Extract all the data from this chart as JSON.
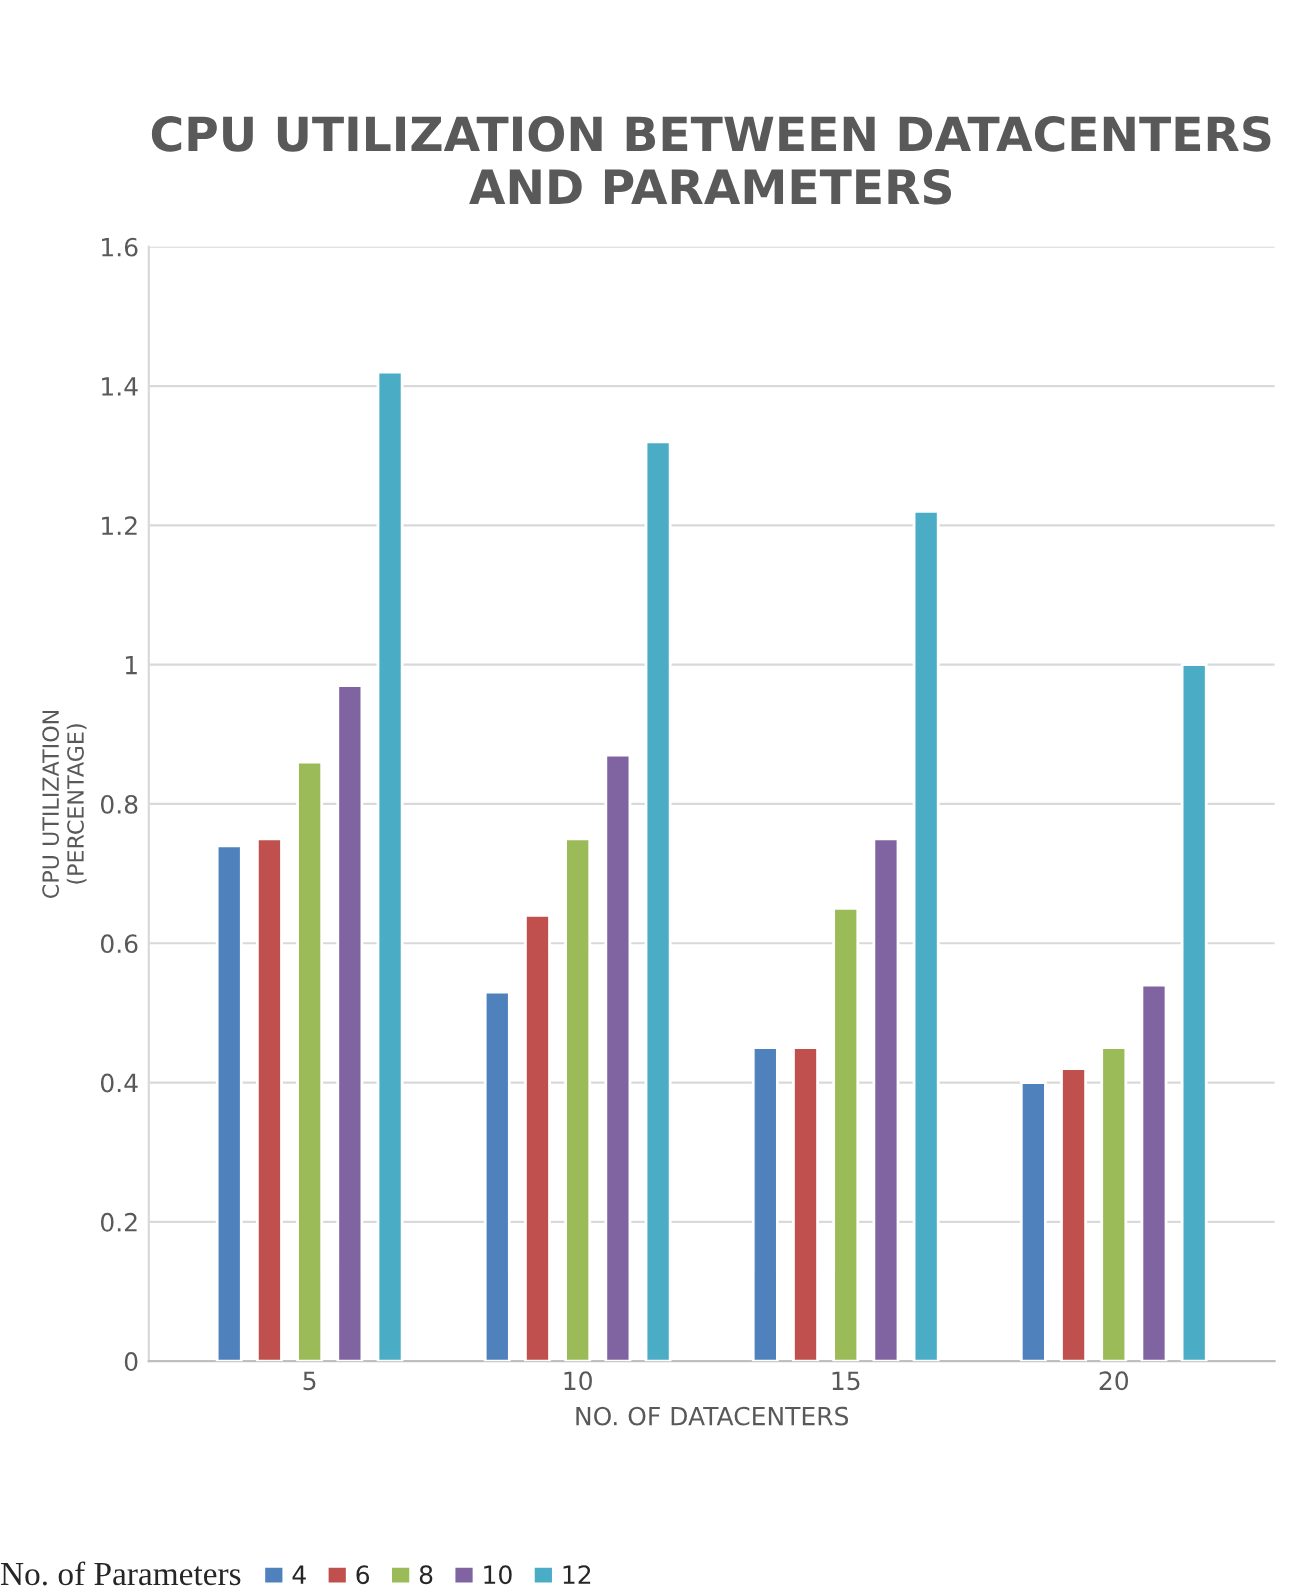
{
  "chart_data": {
    "type": "bar",
    "title": "CPU UTILIZATION BETWEEN DATACENTERS AND PARAMETERS",
    "xlabel": "NO. OF DATACENTERS",
    "ylabel": "CPU UTILIZATION\n(PERCENTAGE)",
    "legend_title": "No. of Parameters",
    "categories": [
      "5",
      "10",
      "15",
      "20"
    ],
    "series": [
      {
        "name": "4",
        "color": "#4f81bd",
        "values": [
          0.74,
          0.53,
          0.45,
          0.4
        ]
      },
      {
        "name": "6",
        "color": "#c0504d",
        "values": [
          0.75,
          0.64,
          0.45,
          0.42
        ]
      },
      {
        "name": "8",
        "color": "#9bbb59",
        "values": [
          0.86,
          0.75,
          0.65,
          0.45
        ]
      },
      {
        "name": "10",
        "color": "#8064a2",
        "values": [
          0.97,
          0.87,
          0.75,
          0.54
        ]
      },
      {
        "name": "12",
        "color": "#4bacc6",
        "values": [
          1.42,
          1.32,
          1.22,
          1.0
        ]
      }
    ],
    "ylim": [
      0,
      1.6
    ],
    "yticks": [
      {
        "value": 0,
        "label": "0"
      },
      0.2,
      0.4,
      0.6,
      0.8,
      {
        "value": 1,
        "label": "1"
      },
      1.2,
      1.4,
      1.6
    ],
    "grid": "y",
    "legend": "bottom"
  }
}
